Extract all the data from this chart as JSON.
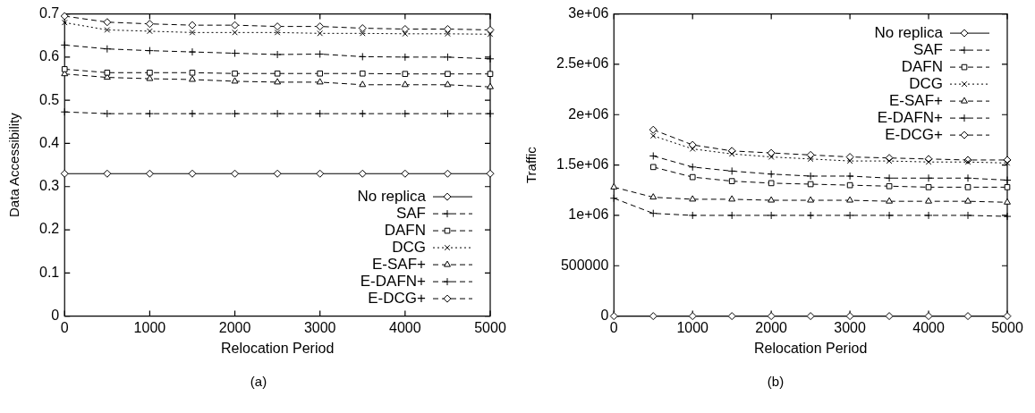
{
  "chart_data": [
    {
      "type": "line",
      "xlabel": "Relocation Period",
      "ylabel": "Data Accessibility",
      "annotations": [
        "(a)"
      ],
      "x": [
        0,
        500,
        1000,
        1500,
        2000,
        2500,
        3000,
        3500,
        4000,
        4500,
        5000
      ],
      "xlim": [
        0,
        5000
      ],
      "xticks": [
        0,
        1000,
        2000,
        3000,
        4000,
        5000
      ],
      "ylim": [
        0,
        0.7
      ],
      "yticks": [
        0,
        0.1,
        0.2,
        0.3,
        0.4,
        0.5,
        0.6,
        0.7
      ],
      "legend": "bottom right",
      "series": [
        {
          "name": "No replica",
          "color": "#000000",
          "marker": "diamond",
          "line_style": "solid",
          "values": [
            0.33,
            0.33,
            0.33,
            0.33,
            0.33,
            0.33,
            0.33,
            0.33,
            0.33,
            0.33,
            0.33
          ]
        },
        {
          "name": "SAF",
          "color": "#000000",
          "marker": "cross",
          "line_style": "dashed",
          "values": [
            0.473,
            0.469,
            0.469,
            0.469,
            0.469,
            0.469,
            0.469,
            0.469,
            0.469,
            0.469,
            0.469
          ]
        },
        {
          "name": "DAFN",
          "color": "#000000",
          "marker": "square",
          "line_style": "dashed",
          "values": [
            0.572,
            0.564,
            0.564,
            0.564,
            0.562,
            0.562,
            0.562,
            0.562,
            0.561,
            0.561,
            0.561
          ]
        },
        {
          "name": "DCG",
          "color": "#000000",
          "marker": "x",
          "line_style": "dotted",
          "values": [
            0.68,
            0.663,
            0.66,
            0.657,
            0.657,
            0.657,
            0.655,
            0.655,
            0.654,
            0.654,
            0.653
          ]
        },
        {
          "name": "E-SAF+",
          "color": "#000000",
          "marker": "triangle",
          "line_style": "dashed",
          "values": [
            0.561,
            0.553,
            0.55,
            0.548,
            0.544,
            0.542,
            0.542,
            0.536,
            0.536,
            0.536,
            0.531
          ]
        },
        {
          "name": "E-DAFN+",
          "color": "#000000",
          "marker": "cross",
          "line_style": "dashed",
          "values": [
            0.628,
            0.619,
            0.615,
            0.612,
            0.609,
            0.606,
            0.607,
            0.601,
            0.6,
            0.6,
            0.596
          ]
        },
        {
          "name": "E-DCG+",
          "color": "#000000",
          "marker": "diamond",
          "line_style": "dashed",
          "values": [
            0.695,
            0.681,
            0.677,
            0.674,
            0.674,
            0.671,
            0.671,
            0.667,
            0.665,
            0.665,
            0.663
          ]
        }
      ]
    },
    {
      "type": "line",
      "xlabel": "Relocation Period",
      "ylabel": "Traffic",
      "annotations": [
        "(b)"
      ],
      "x": [
        0,
        500,
        1000,
        1500,
        2000,
        2500,
        3000,
        3500,
        4000,
        4500,
        5000
      ],
      "xlim": [
        0,
        5000
      ],
      "xticks": [
        0,
        1000,
        2000,
        3000,
        4000,
        5000
      ],
      "ylim": [
        0,
        3000000
      ],
      "yticks": [
        0,
        {
          "value": 500000,
          "label": "500000"
        },
        {
          "value": 1000000,
          "label": "1e+06"
        },
        {
          "value": 1500000,
          "label": "1.5e+06"
        },
        {
          "value": 2000000,
          "label": "2e+06"
        },
        {
          "value": 2500000,
          "label": "2.5e+06"
        },
        {
          "value": 3000000,
          "label": "3e+06"
        }
      ],
      "legend": "top right",
      "series": [
        {
          "name": "No replica",
          "color": "#000000",
          "marker": "diamond",
          "line_style": "solid",
          "values": [
            0,
            0,
            0,
            0,
            0,
            0,
            0,
            0,
            0,
            0,
            0
          ]
        },
        {
          "name": "SAF",
          "color": "#000000",
          "marker": "cross",
          "line_style": "dashed",
          "values": [
            1170000,
            1020000,
            1000000,
            1000000,
            1000000,
            1000000,
            1000000,
            1000000,
            1000000,
            1000000,
            990000
          ]
        },
        {
          "name": "DAFN",
          "color": "#000000",
          "marker": "square",
          "line_style": "dashed",
          "values": [
            null,
            1480000,
            1380000,
            1340000,
            1320000,
            1310000,
            1300000,
            1290000,
            1280000,
            1280000,
            1280000
          ]
        },
        {
          "name": "DCG",
          "color": "#000000",
          "marker": "x",
          "line_style": "dotted",
          "values": [
            null,
            1790000,
            1660000,
            1610000,
            1580000,
            1560000,
            1540000,
            1540000,
            1530000,
            1530000,
            1520000
          ]
        },
        {
          "name": "E-SAF+",
          "color": "#000000",
          "marker": "triangle",
          "line_style": "dashed",
          "values": [
            1280000,
            1180000,
            1160000,
            1160000,
            1150000,
            1150000,
            1150000,
            1140000,
            1140000,
            1140000,
            1130000
          ]
        },
        {
          "name": "E-DAFN+",
          "color": "#000000",
          "marker": "cross",
          "line_style": "dashed",
          "values": [
            null,
            1590000,
            1480000,
            1440000,
            1410000,
            1390000,
            1390000,
            1370000,
            1370000,
            1370000,
            1350000
          ]
        },
        {
          "name": "E-DCG+",
          "color": "#000000",
          "marker": "diamond",
          "line_style": "dashed",
          "values": [
            null,
            1850000,
            1700000,
            1640000,
            1620000,
            1600000,
            1580000,
            1570000,
            1560000,
            1550000,
            1550000
          ]
        }
      ]
    }
  ]
}
